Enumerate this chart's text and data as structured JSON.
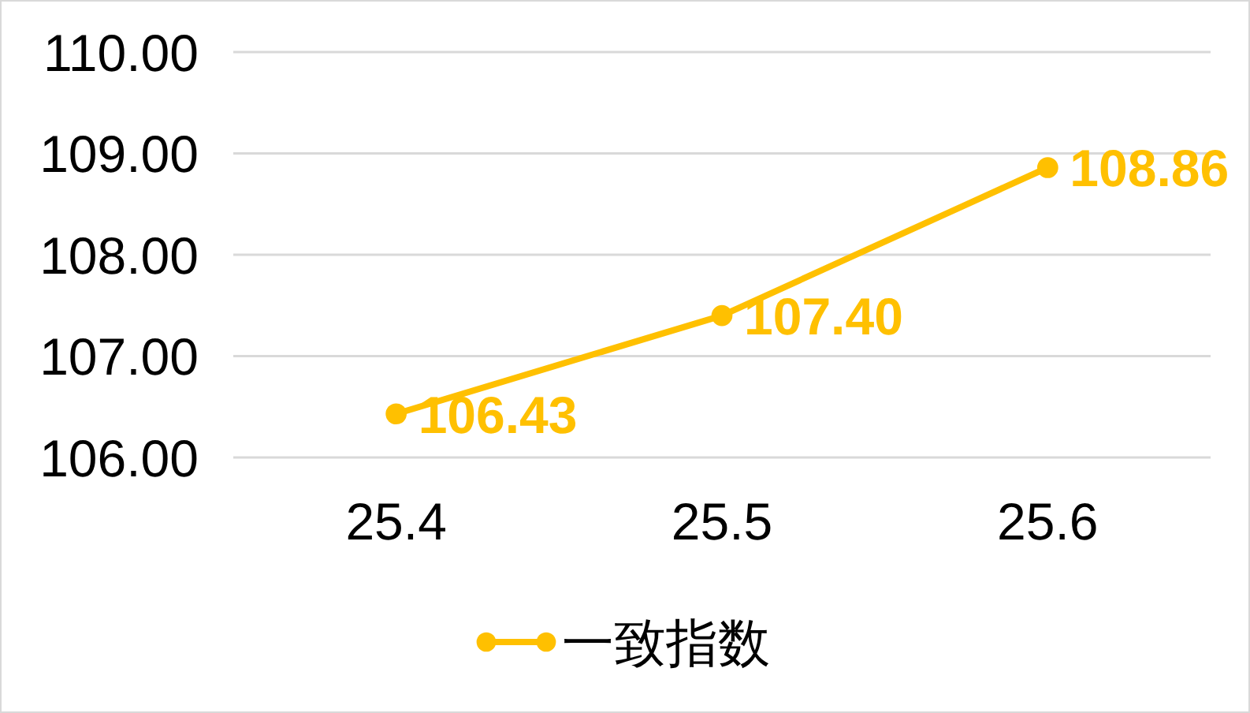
{
  "chart_data": {
    "type": "line",
    "categories": [
      "25.4",
      "25.5",
      "25.6"
    ],
    "series": [
      {
        "name": "一致指数",
        "color": "#ffc000",
        "values": [
          106.43,
          107.4,
          108.86
        ],
        "value_labels": [
          "106.43",
          "107.40",
          "108.86"
        ]
      }
    ],
    "ylim": [
      106,
      110
    ],
    "yticks": [
      {
        "value": 106,
        "label": "106.00"
      },
      {
        "value": 107,
        "label": "107.00"
      },
      {
        "value": 108,
        "label": "108.00"
      },
      {
        "value": 109,
        "label": "109.00"
      },
      {
        "value": 110,
        "label": "110.00"
      }
    ],
    "grid": "y",
    "legend": "bottom",
    "marker": "circle",
    "line_style": "solid"
  }
}
